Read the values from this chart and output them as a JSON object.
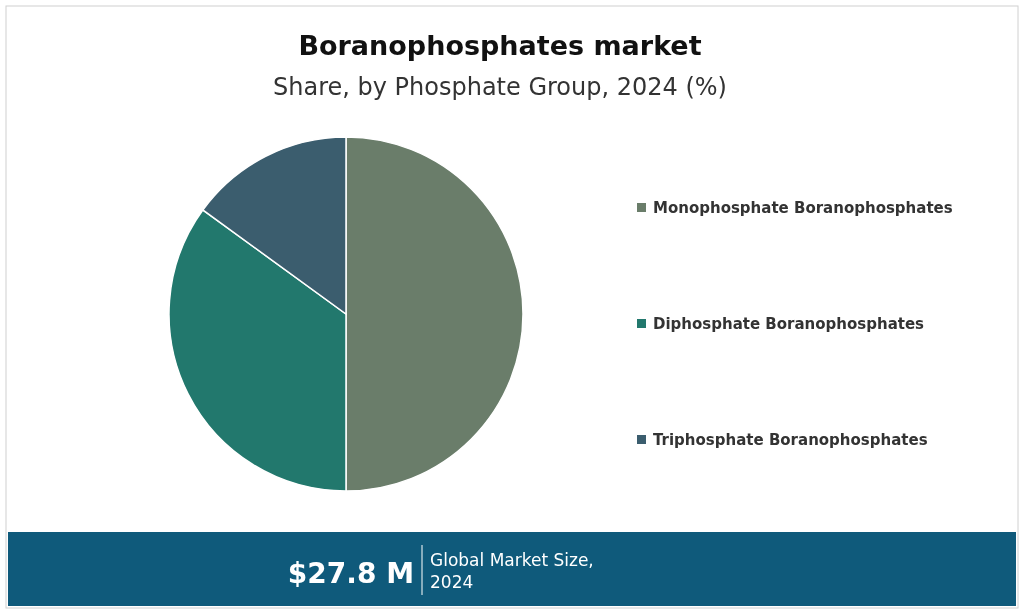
{
  "chart_data": {
    "type": "pie",
    "title": "Boranophosphates market",
    "subtitle": "Share, by Phosphate Group, 2024 (%)",
    "categories": [
      "Monophosphate Boranophosphates",
      "Diphosphate Boranophosphates",
      "Triphosphate Boranophosphates"
    ],
    "values": [
      50,
      35,
      15
    ],
    "colors": [
      "#6a7d6a",
      "#22786d",
      "#3b5d6e"
    ],
    "legend": "right",
    "annotations": [
      "$27.8 M",
      "Global Market Size, 2024"
    ]
  }
}
